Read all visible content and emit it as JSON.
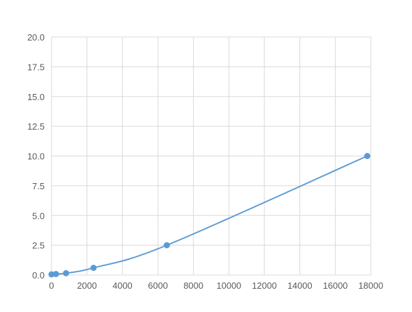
{
  "chart_data": {
    "type": "line",
    "title": "",
    "xlabel": "",
    "ylabel": "",
    "xlim": [
      0,
      18000
    ],
    "ylim": [
      0,
      20
    ],
    "grid": true,
    "x_ticks": [
      "0",
      "2000",
      "4000",
      "6000",
      "8000",
      "10000",
      "12000",
      "14000",
      "16000",
      "18000"
    ],
    "y_ticks": [
      "0.0",
      "2.5",
      "5.0",
      "7.5",
      "10.0",
      "12.5",
      "15.0",
      "17.5",
      "20.0"
    ],
    "series": [
      {
        "x": [
          0,
          250,
          820,
          2370,
          6500,
          17800
        ],
        "y": [
          0.05,
          0.08,
          0.15,
          0.6,
          2.5,
          10.0
        ],
        "color": "#5b9bd5",
        "smooth": true
      }
    ]
  }
}
